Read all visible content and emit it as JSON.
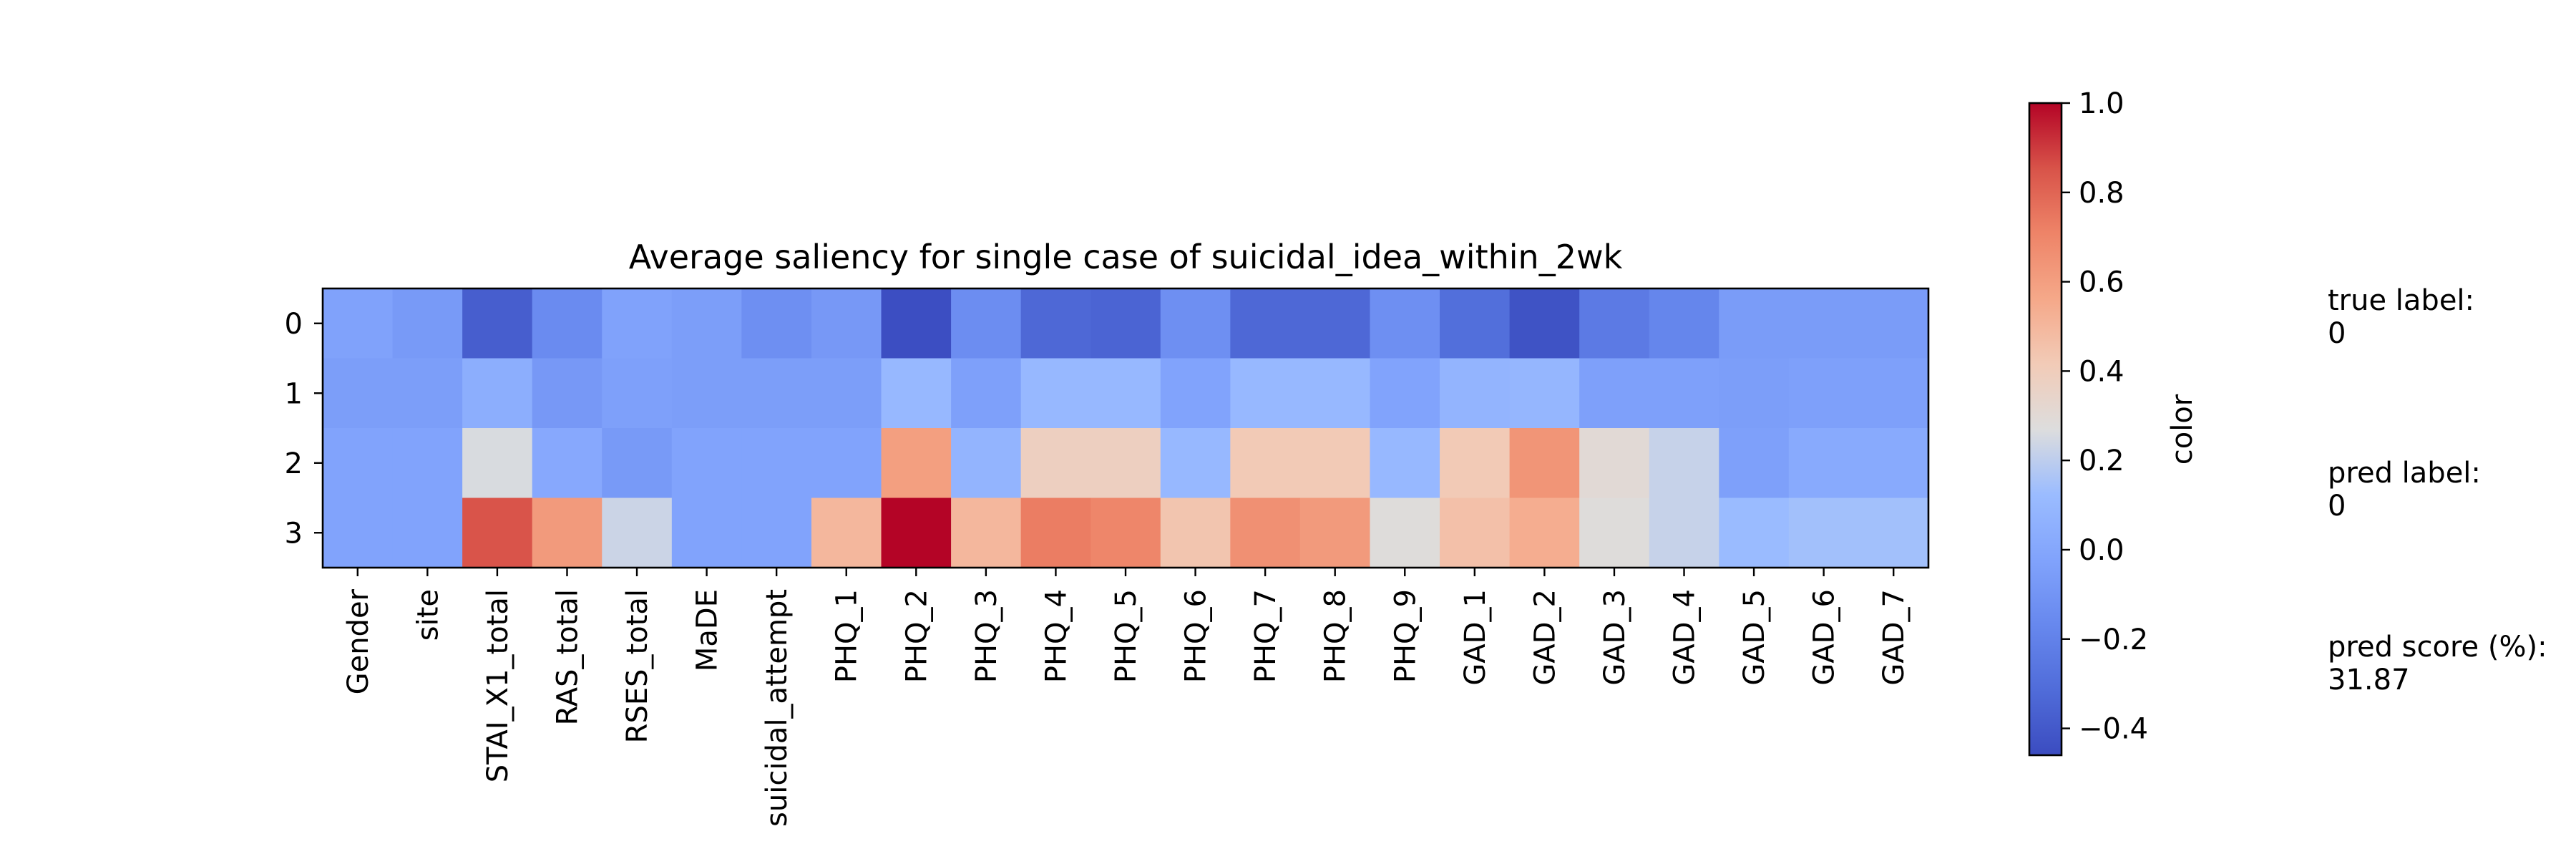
{
  "chart_data": {
    "type": "heatmap",
    "title": "Average saliency for single case of suicidal_idea_within_2wk",
    "xlabel": "",
    "ylabel": "",
    "x_categories": [
      "Gender",
      "site",
      "STAI_X1_total",
      "RAS_total",
      "RSES_total",
      "MaDE",
      "suicidal_attempt",
      "PHQ_1",
      "PHQ_2",
      "PHQ_3",
      "PHQ_4",
      "PHQ_5",
      "PHQ_6",
      "PHQ_7",
      "PHQ_8",
      "PHQ_9",
      "GAD_1",
      "GAD_2",
      "GAD_3",
      "GAD_4",
      "GAD_5",
      "GAD_6",
      "GAD_7"
    ],
    "y_categories": [
      "0",
      "1",
      "2",
      "3"
    ],
    "values": [
      [
        -0.03,
        -0.07,
        -0.38,
        -0.15,
        -0.03,
        -0.05,
        -0.13,
        -0.08,
        -0.45,
        -0.14,
        -0.33,
        -0.35,
        -0.13,
        -0.33,
        -0.33,
        -0.13,
        -0.3,
        -0.43,
        -0.24,
        -0.18,
        -0.06,
        -0.06,
        -0.06
      ],
      [
        -0.05,
        -0.05,
        0.04,
        -0.08,
        -0.04,
        -0.05,
        -0.05,
        -0.05,
        0.1,
        -0.04,
        0.1,
        0.1,
        -0.02,
        0.1,
        0.1,
        -0.02,
        0.08,
        0.09,
        -0.04,
        -0.04,
        -0.05,
        -0.04,
        -0.04
      ],
      [
        -0.02,
        -0.02,
        0.26,
        0.01,
        -0.07,
        -0.02,
        -0.02,
        -0.02,
        0.6,
        0.08,
        0.38,
        0.38,
        0.1,
        0.42,
        0.42,
        0.1,
        0.42,
        0.64,
        0.3,
        0.22,
        -0.04,
        0.02,
        0.02
      ],
      [
        -0.02,
        -0.02,
        0.85,
        0.62,
        0.23,
        -0.02,
        -0.02,
        0.5,
        1.0,
        0.5,
        0.73,
        0.7,
        0.44,
        0.66,
        0.62,
        0.28,
        0.46,
        0.54,
        0.28,
        0.22,
        0.12,
        0.14,
        0.14
      ]
    ],
    "colormap": "coolwarm",
    "vmin": -0.46,
    "vmax": 1.0,
    "colorbar": {
      "label": "color",
      "ticks": [
        1.0,
        0.8,
        0.6,
        0.4,
        0.2,
        0.0,
        -0.2,
        -0.4
      ],
      "tick_labels": [
        "1.0",
        "0.8",
        "0.6",
        "0.4",
        "0.2",
        "0.0",
        "−0.2",
        "−0.4"
      ]
    },
    "grid": false
  },
  "annotations": [
    {
      "label": "true label:",
      "value": "0"
    },
    {
      "label": "pred label:",
      "value": "0"
    },
    {
      "label": "pred score (%):",
      "value": "31.87"
    }
  ]
}
